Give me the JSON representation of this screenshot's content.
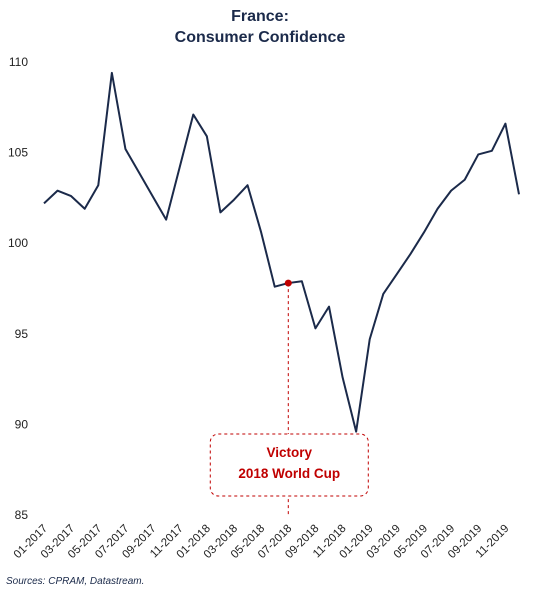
{
  "chart_data": {
    "type": "line",
    "title": [
      "France:",
      "Consumer Confidence"
    ],
    "categories": [
      "01-2017",
      null,
      "03-2017",
      null,
      "05-2017",
      null,
      "07-2017",
      null,
      "09-2017",
      null,
      "11-2017",
      null,
      "01-2018",
      null,
      "03-2018",
      null,
      "05-2018",
      null,
      "07-2018",
      null,
      "09-2018",
      null,
      "11-2018",
      null,
      "01-2019",
      null,
      "03-2019",
      null,
      "05-2019",
      null,
      "07-2019",
      null,
      "09-2019",
      null,
      "11-2019",
      null
    ],
    "series": [
      {
        "color": "#1b2a4a",
        "values": [
          102.2,
          102.9,
          102.6,
          101.9,
          103.2,
          109.4,
          105.2,
          103.9,
          102.6,
          101.3,
          104.2,
          107.1,
          105.9,
          101.7,
          102.4,
          103.2,
          100.6,
          97.6,
          97.8,
          97.9,
          95.3,
          96.5,
          92.6,
          89.6,
          94.7,
          97.2,
          98.3,
          99.4,
          100.6,
          101.9,
          102.9,
          103.5,
          104.9,
          105.1,
          106.6,
          102.7
        ]
      }
    ],
    "ylim": [
      85,
      110
    ],
    "yticks": [
      85,
      90,
      95,
      100,
      105,
      110
    ],
    "annotation": {
      "x": "07-2018",
      "lines": [
        "Victory",
        "2018 World Cup"
      ],
      "color": "#c00000"
    },
    "source": "Sources: CPRAM, Datastream."
  }
}
